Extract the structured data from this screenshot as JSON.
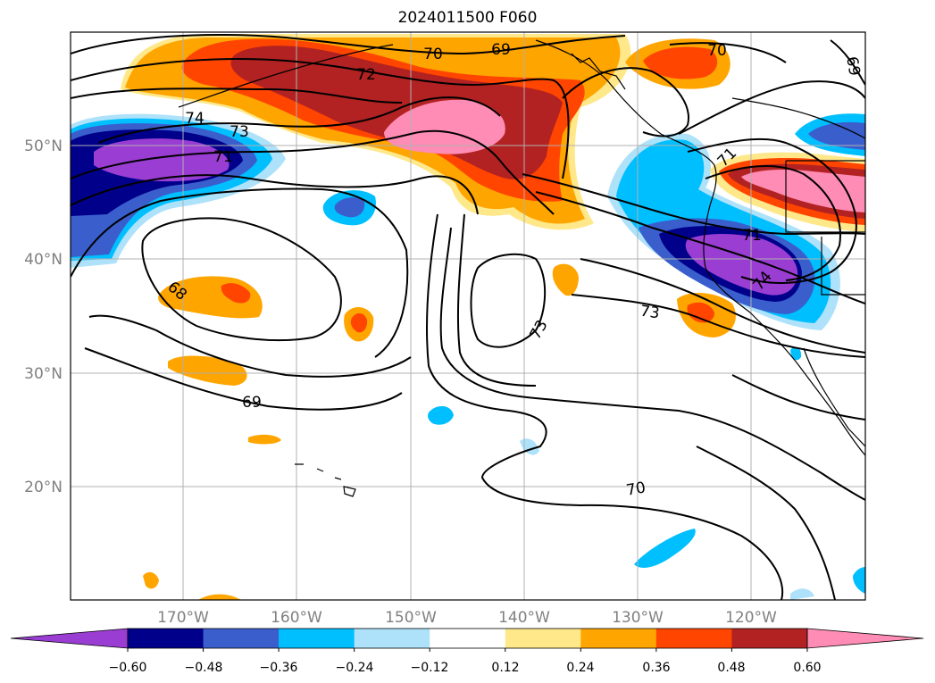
{
  "title": "2024011500 F060",
  "map": {
    "lat_labels": [
      "50°N",
      "40°N",
      "30°N",
      "20°N"
    ],
    "lon_labels": [
      "170°W",
      "160°W",
      "150°W",
      "140°W",
      "130°W",
      "120°W"
    ],
    "contour_labels": [
      "70",
      "69",
      "70",
      "69",
      "74",
      "73",
      "71",
      "71",
      "71",
      "74",
      "68",
      "73",
      "73",
      "69",
      "70",
      "72"
    ]
  },
  "colorbar": {
    "ticks": [
      "−0.60",
      "−0.48",
      "−0.36",
      "−0.24",
      "−0.12",
      "0.12",
      "0.24",
      "0.36",
      "0.48",
      "0.60"
    ],
    "colors": [
      "#9a3dd2",
      "#00008b",
      "#3a5fcd",
      "#00bfff",
      "#aee2fa",
      "#ffffff",
      "#ffe88a",
      "#ffa500",
      "#ff4500",
      "#b22222",
      "#ff8cb4"
    ]
  }
}
